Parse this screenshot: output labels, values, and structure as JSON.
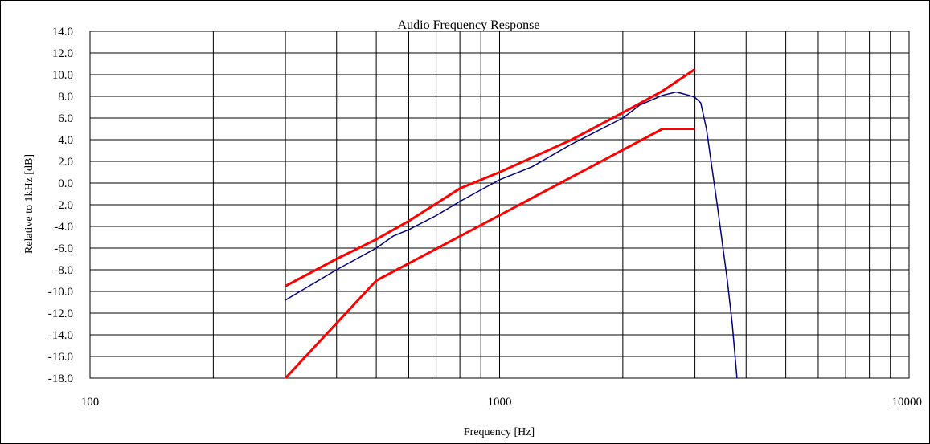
{
  "chart_data": {
    "type": "line",
    "title": "Audio Frequency Response",
    "xlabel": "Frequency [Hz]",
    "ylabel": "Relative to 1kHz [dB]",
    "xscale": "log",
    "xlim": [
      100,
      10000
    ],
    "ylim": [
      -18,
      14
    ],
    "x_ticks": [
      100,
      1000,
      10000
    ],
    "x_tick_labels": [
      "100",
      "1000",
      "10000"
    ],
    "y_ticks": [
      14,
      12,
      10,
      8,
      6,
      4,
      2,
      0,
      -2,
      -4,
      -6,
      -8,
      -10,
      -12,
      -14,
      -16,
      -18
    ],
    "y_tick_labels": [
      "14.0",
      "12.0",
      "10.0",
      "8.0",
      "6.0",
      "4.0",
      "2.0",
      "0.0",
      "-2.0",
      "-4.0",
      "-6.0",
      "-8.0",
      "-10.0",
      "-12.0",
      "-14.0",
      "-16.0",
      "-18.0"
    ],
    "grid": true,
    "legend": "none",
    "series": [
      {
        "color": "#ff0000",
        "points": [
          [
            300,
            -9.5
          ],
          [
            400,
            -7
          ],
          [
            500,
            -5.2
          ],
          [
            600,
            -3.5
          ],
          [
            800,
            -0.5
          ],
          [
            1000,
            1
          ],
          [
            1500,
            4
          ],
          [
            2000,
            6.5
          ],
          [
            2500,
            8.5
          ],
          [
            3000,
            10.5
          ]
        ]
      },
      {
        "color": "#ff0000",
        "points": [
          [
            300,
            -18
          ],
          [
            500,
            -9
          ],
          [
            2500,
            5
          ],
          [
            3000,
            5
          ]
        ]
      },
      {
        "color": "#000080",
        "points": [
          [
            300,
            -10.8
          ],
          [
            400,
            -8
          ],
          [
            500,
            -6
          ],
          [
            550,
            -4.9
          ],
          [
            600,
            -4.3
          ],
          [
            700,
            -3
          ],
          [
            800,
            -1.7
          ],
          [
            1000,
            0.3
          ],
          [
            1200,
            1.5
          ],
          [
            1500,
            3.6
          ],
          [
            2000,
            6
          ],
          [
            2200,
            7.2
          ],
          [
            2500,
            8.1
          ],
          [
            2700,
            8.4
          ],
          [
            2900,
            8.1
          ],
          [
            3000,
            7.9
          ],
          [
            3100,
            7.4
          ],
          [
            3200,
            5
          ],
          [
            3400,
            -2
          ],
          [
            3600,
            -9
          ],
          [
            3700,
            -13
          ],
          [
            3800,
            -18
          ]
        ]
      }
    ]
  }
}
